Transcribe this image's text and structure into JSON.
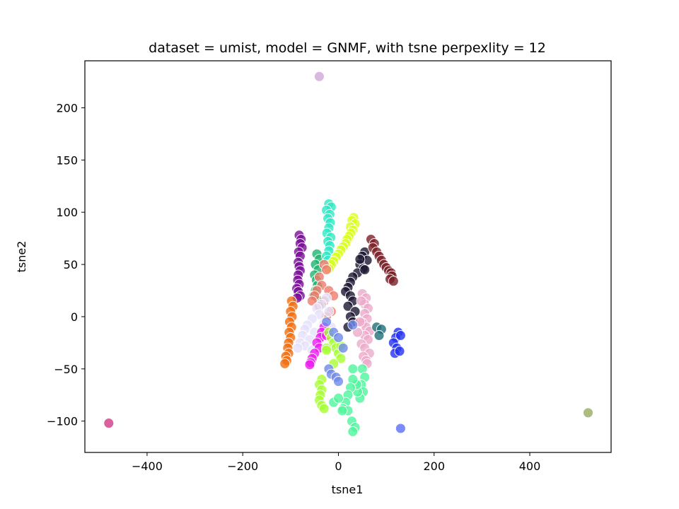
{
  "chart_data": {
    "type": "scatter",
    "title": "dataset = umist, model = GNMF, with tsne perpexlity = 12",
    "xlabel": "tsne1",
    "ylabel": "tsne2",
    "xlim": [
      -530,
      570
    ],
    "ylim": [
      -130,
      245
    ],
    "xticks": [
      -400,
      -200,
      0,
      200,
      400
    ],
    "xtick_labels": [
      "−400",
      "−200",
      "0",
      "200",
      "400"
    ],
    "yticks": [
      -100,
      -50,
      0,
      50,
      100,
      150,
      200
    ],
    "ytick_labels": [
      "−100",
      "−50",
      "0",
      "50",
      "100",
      "150",
      "200"
    ],
    "grid": false,
    "legend": "none",
    "point_alpha": 0.8,
    "series": [
      {
        "color": "#7b0f99",
        "points": [
          [
            -82,
            78
          ],
          [
            -78,
            74
          ],
          [
            -80,
            70
          ],
          [
            -76,
            66
          ],
          [
            -83,
            62
          ],
          [
            -80,
            58
          ],
          [
            -84,
            52
          ],
          [
            -82,
            48
          ],
          [
            -80,
            44
          ],
          [
            -84,
            40
          ],
          [
            -85,
            35
          ],
          [
            -82,
            31
          ],
          [
            -87,
            27
          ],
          [
            -84,
            24
          ],
          [
            -80,
            20
          ],
          [
            -86,
            18
          ]
        ]
      },
      {
        "color": "#f06d10",
        "points": [
          [
            -98,
            15
          ],
          [
            -95,
            10
          ],
          [
            -100,
            5
          ],
          [
            -97,
            0
          ],
          [
            -102,
            -5
          ],
          [
            -98,
            -10
          ],
          [
            -103,
            -15
          ],
          [
            -100,
            -20
          ],
          [
            -104,
            -25
          ],
          [
            -106,
            -30
          ],
          [
            -104,
            -35
          ],
          [
            -110,
            -38
          ],
          [
            -108,
            -42
          ],
          [
            -112,
            -45
          ]
        ]
      },
      {
        "color": "#1db56e",
        "points": [
          [
            -45,
            60
          ],
          [
            -40,
            55
          ],
          [
            -48,
            50
          ],
          [
            -42,
            45
          ],
          [
            -50,
            40
          ],
          [
            -46,
            35
          ],
          [
            -44,
            30
          ],
          [
            -48,
            25
          ],
          [
            -52,
            20
          ],
          [
            -40,
            15
          ],
          [
            -35,
            12
          ]
        ]
      },
      {
        "color": "#2ee8c4",
        "points": [
          [
            -20,
            108
          ],
          [
            -15,
            105
          ],
          [
            -25,
            102
          ],
          [
            -18,
            98
          ],
          [
            -22,
            94
          ],
          [
            -17,
            90
          ],
          [
            -20,
            85
          ],
          [
            -24,
            80
          ],
          [
            -16,
            76
          ],
          [
            -22,
            72
          ],
          [
            -18,
            68
          ],
          [
            -20,
            63
          ],
          [
            -25,
            58
          ],
          [
            -22,
            54
          ],
          [
            -18,
            50
          ]
        ]
      },
      {
        "color": "#dbff1f",
        "points": [
          [
            32,
            95
          ],
          [
            28,
            92
          ],
          [
            35,
            89
          ],
          [
            25,
            86
          ],
          [
            30,
            83
          ],
          [
            26,
            80
          ],
          [
            22,
            77
          ],
          [
            18,
            74
          ],
          [
            15,
            70
          ],
          [
            10,
            67
          ],
          [
            5,
            64
          ],
          [
            0,
            60
          ],
          [
            -5,
            57
          ],
          [
            -10,
            53
          ],
          [
            -15,
            50
          ],
          [
            -20,
            46
          ]
        ]
      },
      {
        "color": "#f07a6a",
        "points": [
          [
            -30,
            50
          ],
          [
            -25,
            45
          ],
          [
            -40,
            38
          ],
          [
            -35,
            30
          ],
          [
            -45,
            25
          ],
          [
            -50,
            20
          ],
          [
            -55,
            15
          ],
          [
            -20,
            25
          ],
          [
            -10,
            20
          ],
          [
            -30,
            15
          ],
          [
            -40,
            10
          ],
          [
            -15,
            5
          ],
          [
            -25,
            0
          ]
        ]
      },
      {
        "color": "#1b1530",
        "points": [
          [
            55,
            62
          ],
          [
            50,
            58
          ],
          [
            60,
            54
          ],
          [
            45,
            50
          ],
          [
            52,
            46
          ],
          [
            40,
            42
          ],
          [
            30,
            38
          ],
          [
            25,
            33
          ],
          [
            20,
            28
          ],
          [
            15,
            24
          ],
          [
            25,
            20
          ],
          [
            30,
            15
          ],
          [
            20,
            10
          ],
          [
            35,
            5
          ],
          [
            25,
            0
          ],
          [
            30,
            -5
          ],
          [
            20,
            -10
          ],
          [
            45,
            55
          ],
          [
            55,
            45
          ]
        ]
      },
      {
        "color": "#7a2128",
        "points": [
          [
            68,
            74
          ],
          [
            75,
            70
          ],
          [
            72,
            66
          ],
          [
            80,
            62
          ],
          [
            85,
            58
          ],
          [
            90,
            54
          ],
          [
            95,
            50
          ],
          [
            100,
            47
          ],
          [
            105,
            44
          ],
          [
            110,
            42
          ],
          [
            112,
            39
          ],
          [
            108,
            36
          ],
          [
            115,
            34
          ]
        ]
      },
      {
        "color": "#ecaac9",
        "points": [
          [
            50,
            22
          ],
          [
            58,
            18
          ],
          [
            55,
            12
          ],
          [
            62,
            8
          ],
          [
            55,
            3
          ],
          [
            60,
            -2
          ],
          [
            50,
            -6
          ],
          [
            58,
            -10
          ],
          [
            65,
            -14
          ],
          [
            55,
            -18
          ],
          [
            62,
            -22
          ],
          [
            48,
            -26
          ],
          [
            55,
            -30
          ],
          [
            65,
            -35
          ],
          [
            52,
            -38
          ],
          [
            58,
            -42
          ],
          [
            60,
            -45
          ],
          [
            40,
            -15
          ],
          [
            45,
            -5
          ],
          [
            48,
            15
          ]
        ]
      },
      {
        "color": "#e5e0fa",
        "points": [
          [
            -25,
            18
          ],
          [
            -35,
            12
          ],
          [
            -45,
            8
          ],
          [
            -20,
            5
          ],
          [
            -40,
            2
          ],
          [
            -55,
            -2
          ],
          [
            -30,
            -6
          ],
          [
            -65,
            -8
          ],
          [
            -70,
            -12
          ],
          [
            -50,
            -15
          ],
          [
            -75,
            -18
          ],
          [
            -60,
            -22
          ],
          [
            -80,
            -25
          ],
          [
            -70,
            -28
          ],
          [
            -85,
            -30
          ],
          [
            -55,
            -32
          ],
          [
            -15,
            -10
          ]
        ]
      },
      {
        "color": "#ee1bf0",
        "points": [
          [
            -30,
            -10
          ],
          [
            -35,
            -15
          ],
          [
            -38,
            -20
          ],
          [
            -45,
            -25
          ],
          [
            -40,
            -30
          ],
          [
            -50,
            -35
          ],
          [
            -55,
            -40
          ],
          [
            -58,
            -44
          ],
          [
            -60,
            -46
          ],
          [
            -25,
            -18
          ]
        ]
      },
      {
        "color": "#a6ff33",
        "points": [
          [
            -20,
            -15
          ],
          [
            -15,
            -20
          ],
          [
            -10,
            -25
          ],
          [
            -5,
            -30
          ],
          [
            0,
            -35
          ],
          [
            5,
            -40
          ],
          [
            -25,
            -30
          ],
          [
            -35,
            -60
          ],
          [
            -40,
            -65
          ],
          [
            -35,
            -70
          ],
          [
            -38,
            -75
          ],
          [
            -40,
            -80
          ],
          [
            -35,
            -85
          ],
          [
            -30,
            -88
          ],
          [
            -25,
            -32
          ],
          [
            -10,
            -45
          ],
          [
            5,
            -28
          ]
        ]
      },
      {
        "color": "#4ff59c",
        "points": [
          [
            50,
            -50
          ],
          [
            55,
            -58
          ],
          [
            48,
            -65
          ],
          [
            52,
            -72
          ],
          [
            45,
            -78
          ],
          [
            40,
            -72
          ],
          [
            38,
            -65
          ],
          [
            30,
            -60
          ],
          [
            25,
            -68
          ],
          [
            20,
            -75
          ],
          [
            15,
            -82
          ],
          [
            10,
            -88
          ],
          [
            20,
            -90
          ],
          [
            28,
            -100
          ],
          [
            35,
            -106
          ],
          [
            30,
            -110
          ],
          [
            -10,
            -82
          ],
          [
            0,
            -78
          ],
          [
            8,
            -90
          ],
          [
            30,
            -50
          ]
        ]
      },
      {
        "color": "#6e89eb",
        "points": [
          [
            -25,
            -5
          ],
          [
            -10,
            -15
          ],
          [
            0,
            -20
          ],
          [
            -20,
            -50
          ],
          [
            -15,
            -55
          ],
          [
            -5,
            -58
          ],
          [
            0,
            -62
          ],
          [
            10,
            -30
          ],
          [
            30,
            -8
          ]
        ]
      },
      {
        "color": "#1e6e78",
        "points": [
          [
            80,
            -10
          ],
          [
            90,
            -12
          ],
          [
            85,
            -18
          ]
        ]
      },
      {
        "color": "#2432f0",
        "points": [
          [
            125,
            -15
          ],
          [
            120,
            -20
          ],
          [
            130,
            -18
          ],
          [
            115,
            -25
          ],
          [
            122,
            -30
          ],
          [
            118,
            -35
          ],
          [
            128,
            -33
          ]
        ]
      },
      {
        "color": "#cfa8d9",
        "points": [
          [
            -40,
            230
          ]
        ]
      },
      {
        "color": "#ce3a86",
        "points": [
          [
            -480,
            -102
          ]
        ]
      },
      {
        "color": "#5a6ef5",
        "points": [
          [
            130,
            -107
          ]
        ]
      },
      {
        "color": "#98ad62",
        "points": [
          [
            522,
            -92
          ]
        ]
      }
    ]
  }
}
